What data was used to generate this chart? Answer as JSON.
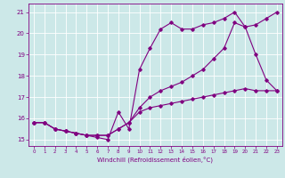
{
  "title": "",
  "xlabel": "Windchill (Refroidissement éolien,°C)",
  "background_color": "#cce8e8",
  "grid_color": "#ffffff",
  "line_color": "#800080",
  "x": [
    0,
    1,
    2,
    3,
    4,
    5,
    6,
    7,
    8,
    9,
    10,
    11,
    12,
    13,
    14,
    15,
    16,
    17,
    18,
    19,
    20,
    21,
    22,
    23
  ],
  "line1": [
    15.8,
    15.8,
    15.5,
    15.4,
    15.3,
    15.2,
    15.1,
    15.0,
    16.3,
    15.5,
    18.3,
    19.3,
    20.2,
    20.5,
    20.2,
    20.2,
    20.4,
    20.5,
    20.7,
    21.0,
    20.3,
    19.0,
    17.8,
    17.3
  ],
  "line2": [
    15.8,
    15.8,
    15.5,
    15.4,
    15.3,
    15.2,
    15.2,
    15.2,
    15.5,
    15.8,
    16.3,
    16.5,
    16.6,
    16.7,
    16.8,
    16.9,
    17.0,
    17.1,
    17.2,
    17.3,
    17.4,
    17.3,
    17.3,
    17.3
  ],
  "line3": [
    15.8,
    15.8,
    15.5,
    15.4,
    15.3,
    15.2,
    15.2,
    15.2,
    15.5,
    15.8,
    16.5,
    17.0,
    17.3,
    17.5,
    17.7,
    18.0,
    18.3,
    18.8,
    19.3,
    20.5,
    20.3,
    20.4,
    20.7,
    21.0
  ],
  "ylim": [
    14.7,
    21.4
  ],
  "yticks": [
    15,
    16,
    17,
    18,
    19,
    20,
    21
  ],
  "xticks": [
    0,
    1,
    2,
    3,
    4,
    5,
    6,
    7,
    8,
    9,
    10,
    11,
    12,
    13,
    14,
    15,
    16,
    17,
    18,
    19,
    20,
    21,
    22,
    23
  ]
}
